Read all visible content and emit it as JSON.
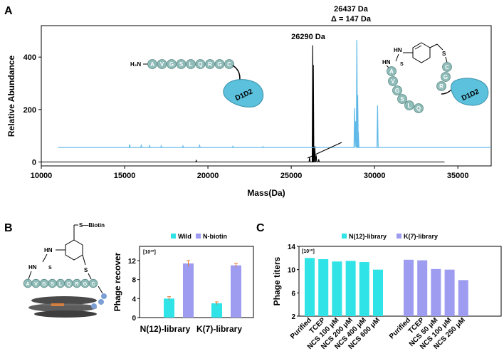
{
  "panels": {
    "A": "A",
    "B": "B",
    "C": "C"
  },
  "colors": {
    "blue_trace": "#5fb8e8",
    "black_trace": "#000000",
    "cyan_bar": "#2fe3e6",
    "purple_bar": "#9d9cf0",
    "bead": "#8fbcb8",
    "protein": "#5bc1dc",
    "error_bar": "#e07a2e"
  },
  "chart_data": [
    {
      "panel": "A",
      "type": "line",
      "xlabel": "Mass(Da)",
      "ylabel": "Relative Abundance",
      "xlim": [
        10000,
        37000
      ],
      "ylim": [
        -15,
        520
      ],
      "xticks": [
        10000,
        15000,
        20000,
        25000,
        30000,
        35000
      ],
      "yticks": [
        0,
        200,
        400
      ],
      "series": [
        {
          "color": "#000000",
          "baseline": 0,
          "x_range": [
            10000,
            34200
          ],
          "peaks": [
            [
              19300,
              6
            ],
            [
              26100,
              18
            ],
            [
              26290,
              445
            ],
            [
              26330,
              370
            ],
            [
              26420,
              60
            ],
            [
              26500,
              25
            ],
            [
              26650,
              10
            ]
          ]
        },
        {
          "color": "#5fb8e8",
          "baseline": 55,
          "x_range": [
            11000,
            37000
          ],
          "peaks": [
            [
              15300,
              12
            ],
            [
              16000,
              8
            ],
            [
              16500,
              7
            ],
            [
              17200,
              6
            ],
            [
              18500,
              6
            ],
            [
              19500,
              8
            ],
            [
              21500,
              5
            ],
            [
              23300,
              4
            ],
            [
              28800,
              150
            ],
            [
              28870,
              100
            ],
            [
              28940,
              410
            ],
            [
              28990,
              200
            ],
            [
              29030,
              60
            ],
            [
              30180,
              160
            ]
          ]
        }
      ],
      "annotations": [
        {
          "text": "26290 Da",
          "x": 26290
        },
        {
          "text": "26437 Da",
          "x": 28940
        },
        {
          "text": "Δ = 147 Da",
          "x": 28940
        }
      ],
      "illustration": {
        "linear_n_term": "H₂N",
        "linear_beads": [
          "A",
          "V",
          "G",
          "S",
          "L",
          "Q",
          "R",
          "G",
          "C"
        ],
        "linear_domain": "D1D2",
        "cyclic_beads_left": [
          "A",
          "V",
          "G",
          "S",
          "L",
          "Q"
        ],
        "cyclic_beads_right": [
          "C",
          "G",
          "R"
        ],
        "cyclic_domain": "D1D2",
        "linker_labels": [
          "HN",
          "HN",
          "S",
          "S"
        ]
      }
    },
    {
      "panel": "B",
      "type": "bar",
      "ylabel": "Phage recover",
      "unit": "[10¹⁰]",
      "ylim": [
        0,
        15
      ],
      "yticks": [
        0,
        4,
        8,
        12
      ],
      "categories": [
        "N(12)-library",
        "K(7)-library"
      ],
      "series": [
        {
          "name": "Wild",
          "color": "#2fe3e6",
          "values": [
            4.0,
            3.0
          ],
          "errors": [
            0.4,
            0.3
          ]
        },
        {
          "name": "N-biotin",
          "color": "#9d9cf0",
          "values": [
            11.4,
            11.0
          ],
          "errors": [
            0.6,
            0.4
          ]
        }
      ],
      "illustration": {
        "biotin_label": "S—Biotin",
        "linker_labels": [
          "HN",
          "HN",
          "S",
          "S"
        ],
        "beads": [
          "A",
          "V",
          "G",
          "S",
          "L",
          "Q",
          "R",
          "G",
          "C"
        ]
      }
    },
    {
      "panel": "C",
      "type": "bar",
      "ylabel": "Phage titers",
      "unit": "[10¹⁰]",
      "ylim": [
        2,
        14
      ],
      "yticks": [
        2,
        6,
        10,
        14
      ],
      "series": [
        {
          "name": "N(12)-library",
          "color": "#2fe3e6",
          "categories": [
            "Purified",
            "TCEP",
            "NCS 100 μM",
            "NCS 200 μM",
            "NCS 400 μM",
            "NCS 600 μM"
          ],
          "values": [
            12.0,
            11.8,
            11.4,
            11.5,
            11.3,
            10.0
          ]
        },
        {
          "name": "K(7)-library",
          "color": "#9d9cf0",
          "categories": [
            "Purified",
            "TCEP",
            "NCS 50 μM",
            "NCS 100 μM",
            "NCS 250 μM"
          ],
          "values": [
            11.7,
            11.6,
            10.1,
            10.0,
            8.2
          ]
        }
      ]
    }
  ]
}
